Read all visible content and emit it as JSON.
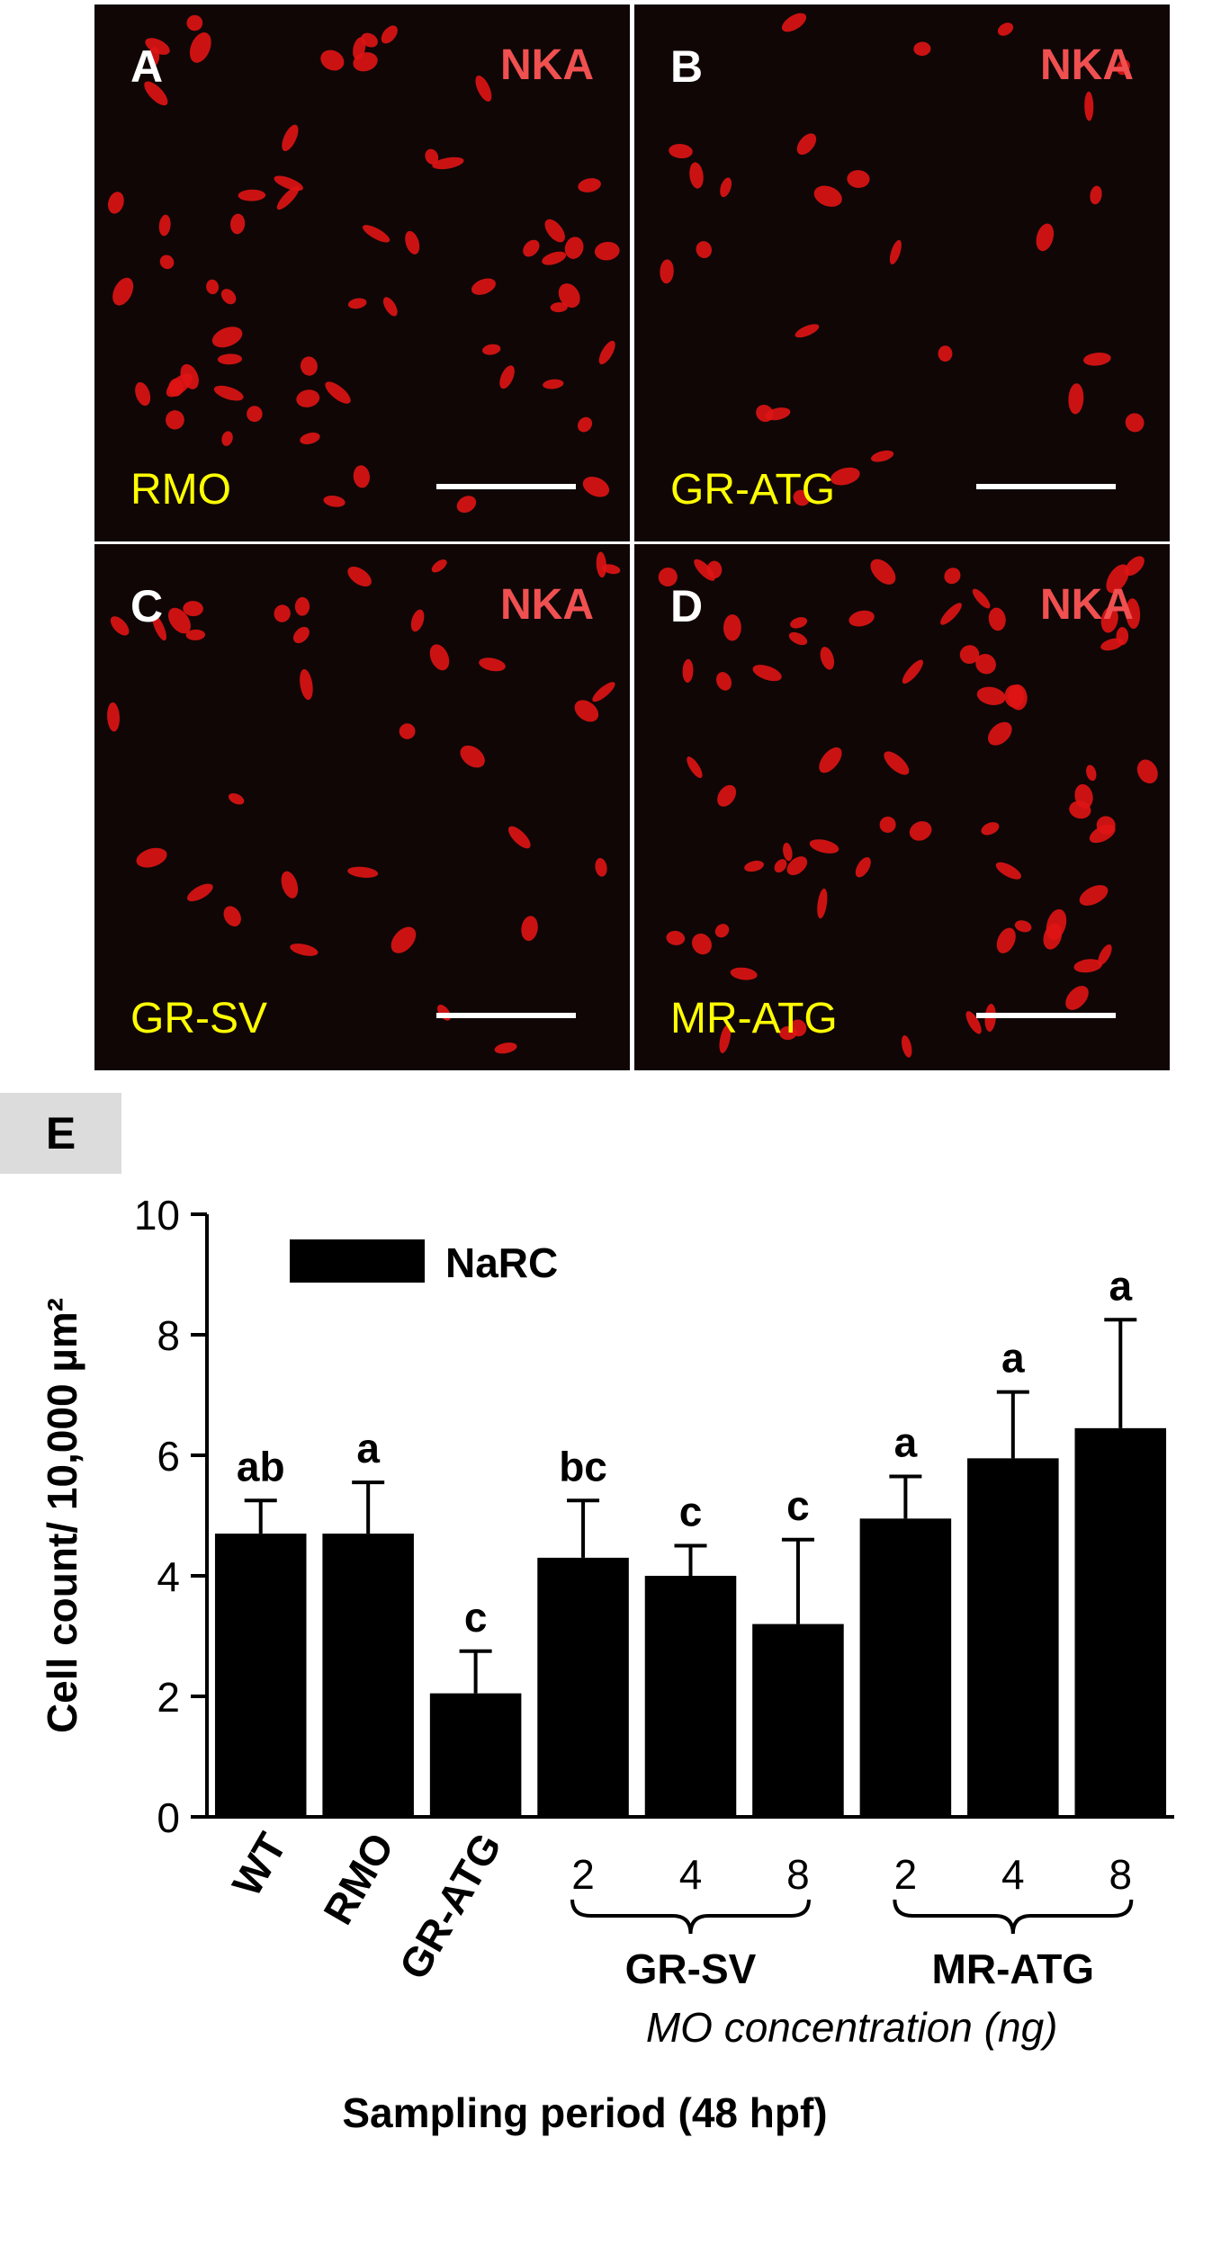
{
  "panels": [
    {
      "letter": "A",
      "marker": "NKA",
      "group": "RMO",
      "cells": 60
    },
    {
      "letter": "B",
      "marker": "NKA",
      "group": "GR-ATG",
      "cells": 26
    },
    {
      "letter": "C",
      "marker": "NKA",
      "group": "GR-SV",
      "cells": 34
    },
    {
      "letter": "D",
      "marker": "NKA",
      "group": "MR-ATG",
      "cells": 68
    }
  ],
  "panel_e": {
    "letter": "E"
  },
  "chart_data": {
    "type": "bar",
    "categories": [
      "WT",
      "RMO",
      "GR-ATG",
      "2",
      "4",
      "8",
      "2",
      "4",
      "8"
    ],
    "series": [
      {
        "name": "NaRC",
        "values": [
          4.7,
          4.7,
          2.05,
          4.3,
          4.0,
          3.2,
          4.95,
          5.95,
          6.45
        ],
        "errors": [
          0.55,
          0.85,
          0.7,
          0.95,
          0.5,
          1.4,
          0.7,
          1.1,
          1.8
        ]
      }
    ],
    "significance_letters": [
      "ab",
      "a",
      "c",
      "bc",
      "c",
      "c",
      "a",
      "a",
      "a"
    ],
    "group_brackets": [
      {
        "label": "GR-SV",
        "from": 3,
        "to": 5
      },
      {
        "label": "MR-ATG",
        "from": 6,
        "to": 8
      }
    ],
    "sublabel": "MO concentration (ng)",
    "ylabel": "Cell count/ 10,000 µm²",
    "xlabel": "Sampling period (48 hpf)",
    "ylim": [
      0,
      10
    ],
    "yticks": [
      0,
      2,
      4,
      6,
      8,
      10
    ],
    "legend": "top-left",
    "bar_color": "#000000"
  },
  "colors": {
    "panel_bg": "#100606",
    "cell": "#e01414",
    "marker_text": "#f05050",
    "group_text": "#ffff00"
  }
}
